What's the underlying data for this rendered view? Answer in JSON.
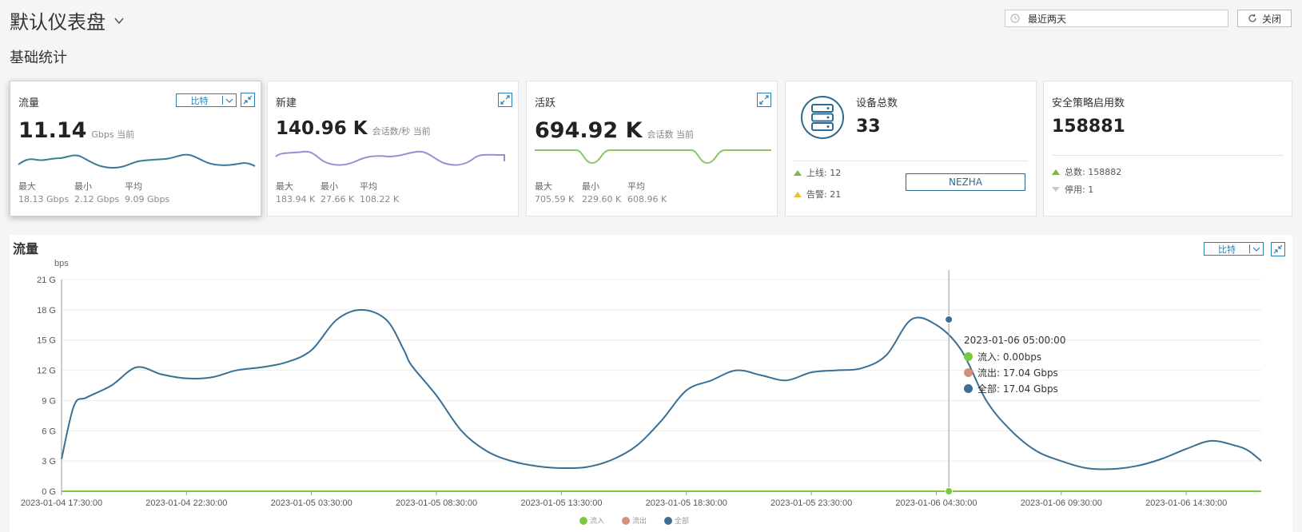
{
  "header": {
    "title": "默认仪表盘",
    "section_title": "基础统计",
    "time_range": "最近两天",
    "close_label": "关闭"
  },
  "icons": {
    "dropdown": "chevron-down-icon",
    "time": "clock-icon",
    "refresh": "refresh-icon",
    "expand": "expand-icon",
    "collapse": "collapse-icon",
    "server": "server-icon"
  },
  "cards": {
    "traffic": {
      "title": "流量",
      "value": "11.14",
      "unit": "Gbps 当前",
      "select": "比特",
      "max_label": "最大",
      "max": "18.13 Gbps",
      "min_label": "最小",
      "min": "2.12 Gbps",
      "avg_label": "平均",
      "avg": "9.09 Gbps",
      "color": "#3a7a9b"
    },
    "new": {
      "title": "新建",
      "value": "140.96 K",
      "unit": "会话数/秒 当前",
      "max_label": "最大",
      "max": "183.94 K",
      "min_label": "最小",
      "min": "27.66 K",
      "avg_label": "平均",
      "avg": "108.22 K",
      "color": "#9b8ed0"
    },
    "active": {
      "title": "活跃",
      "value": "694.92 K",
      "unit": "会话数 当前",
      "max_label": "最大",
      "max": "705.59 K",
      "min_label": "最小",
      "min": "229.60 K",
      "avg_label": "平均",
      "avg": "608.96 K",
      "color": "#8cc665"
    },
    "devices": {
      "title": "设备总数",
      "value": "33",
      "online": "上线: 12",
      "alert": "告警: 21",
      "button": "NEZHA"
    },
    "policy": {
      "title": "安全策略启用数",
      "value": "158881",
      "total": "总数: 158882",
      "disabled": "停用: 1"
    }
  },
  "chart_panel": {
    "title": "流量",
    "select": "比特",
    "tooltip": {
      "time": "2023-01-06 05:00:00",
      "rows": [
        {
          "label": "流入: 0.00bps",
          "color": "#7ac943"
        },
        {
          "label": "流出: 17.04 Gbps",
          "color": "#d4907c"
        },
        {
          "label": "全部: 17.04 Gbps",
          "color": "#3a7094"
        }
      ]
    },
    "legend": [
      {
        "name": "流入",
        "color": "#7ac943"
      },
      {
        "name": "流出",
        "color": "#d4907c"
      },
      {
        "name": "全部",
        "color": "#3a7094"
      }
    ]
  },
  "chart_data": {
    "type": "line",
    "ylabel": "bps",
    "ylim": [
      0,
      21
    ],
    "yticks": [
      "0 G",
      "3 G",
      "6 G",
      "9 G",
      "12 G",
      "15 G",
      "18 G",
      "21 G"
    ],
    "xticks": [
      "2023-01-04 17:30:00",
      "2023-01-04 22:30:00",
      "2023-01-05 03:30:00",
      "2023-01-05 08:30:00",
      "2023-01-05 13:30:00",
      "2023-01-05 18:30:00",
      "2023-01-05 23:30:00",
      "2023-01-06 04:30:00",
      "2023-01-06 09:30:00",
      "2023-01-06 14:30:00"
    ],
    "x_hours_from_start": [
      0,
      0.5,
      1,
      2,
      3,
      4,
      5,
      6,
      7,
      8,
      9,
      10,
      11,
      12,
      13,
      13.7,
      14,
      15,
      16,
      17,
      18,
      19,
      20,
      21,
      22,
      23,
      24,
      25,
      26,
      27,
      28,
      29,
      30,
      31,
      32,
      33,
      34,
      35,
      36,
      37,
      38,
      39,
      40,
      41,
      42,
      43,
      44,
      45,
      46,
      47,
      47.5,
      48
    ],
    "grid": true,
    "series": [
      {
        "name": "全部",
        "color": "#3a7094",
        "values": [
          3.2,
          8.5,
          9.3,
          10.5,
          12.3,
          11.6,
          11.2,
          11.3,
          12.0,
          12.3,
          12.8,
          14.0,
          17.0,
          18.0,
          17.0,
          14.0,
          12.5,
          9.5,
          6.0,
          4.0,
          3.0,
          2.5,
          2.3,
          2.4,
          3.1,
          4.5,
          7.0,
          10.0,
          11.0,
          12.0,
          11.5,
          11.0,
          11.8,
          12.0,
          12.2,
          13.5,
          17.04,
          16.5,
          14.0,
          9.0,
          6.0,
          4.0,
          3.0,
          2.3,
          2.2,
          2.5,
          3.2,
          4.2,
          5.0,
          4.5,
          4.0,
          3.0
        ]
      },
      {
        "name": "流入",
        "color": "#7ac943",
        "values": [
          0,
          0,
          0,
          0,
          0,
          0,
          0,
          0,
          0,
          0,
          0,
          0,
          0,
          0,
          0,
          0,
          0,
          0,
          0,
          0,
          0,
          0,
          0,
          0,
          0,
          0,
          0,
          0,
          0,
          0,
          0,
          0,
          0,
          0,
          0,
          0,
          0,
          0,
          0,
          0,
          0,
          0,
          0,
          0,
          0,
          0,
          0,
          0,
          0,
          0,
          0,
          0
        ]
      }
    ],
    "cursor_x": 35.5
  }
}
